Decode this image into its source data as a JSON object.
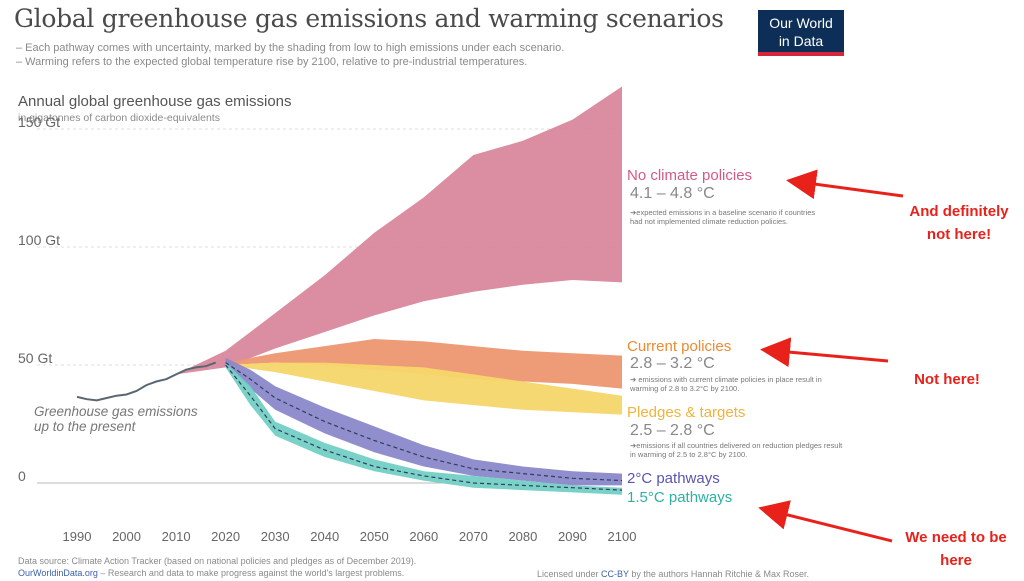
{
  "header": {
    "title": "Global greenhouse gas emissions and warming scenarios",
    "subtitle_1": "– Each pathway comes with uncertainty, marked by the shading from low to high emissions under each scenario.",
    "subtitle_2": "– Warming refers to the expected global temperature rise by 2100, relative to pre-industrial temperatures.",
    "logo_line1": "Our World",
    "logo_line2": "in Data"
  },
  "chart_data": {
    "type": "area",
    "title": "Annual global greenhouse gas emissions",
    "ylabel": "Annual global greenhouse gas emissions",
    "yunit_label": "in gigatonnes of carbon dioxide-equivalents",
    "xlim": [
      1990,
      2100
    ],
    "ylim": [
      -5,
      160
    ],
    "x_ticks": [
      "1990",
      "2000",
      "2010",
      "2020",
      "2030",
      "2040",
      "2050",
      "2060",
      "2070",
      "2080",
      "2090",
      "2100"
    ],
    "y_ticks": [
      {
        "value": 150,
        "label": "150 Gt"
      },
      {
        "value": 100,
        "label": "100 Gt"
      },
      {
        "value": 50,
        "label": "50 Gt"
      },
      {
        "value": 0,
        "label": "0"
      }
    ],
    "history": {
      "label": "Greenhouse gas emissions up to the present",
      "label_line1": "Greenhouse gas emissions",
      "label_line2": "up to the present",
      "color": "#5a6770",
      "x": [
        1990,
        1992,
        1994,
        1996,
        1998,
        2000,
        2002,
        2004,
        2006,
        2008,
        2010,
        2012,
        2014,
        2016,
        2018
      ],
      "y": [
        36.5,
        35.5,
        35,
        36,
        37,
        37.5,
        39,
        41.5,
        43,
        44,
        46,
        48,
        49,
        49.5,
        51
      ]
    },
    "series": [
      {
        "name": "No climate policies",
        "temp": "4.1 – 4.8 °C",
        "note": "➔expected emissions in a baseline scenario if countries had not implemented climate reduction policies.",
        "color": "#d9879d",
        "label_color": "#d45a86",
        "x": [
          2010,
          2020,
          2030,
          2040,
          2050,
          2060,
          2070,
          2080,
          2090,
          2100
        ],
        "low": [
          46,
          49,
          57,
          64,
          71,
          77,
          81,
          84,
          86,
          85
        ],
        "high": [
          46,
          56,
          72,
          88,
          106,
          121,
          139,
          145,
          154,
          168
        ]
      },
      {
        "name": "Current policies",
        "temp": "2.8 – 3.2 °C",
        "note": "➔ emissions with current climate policies in place result in warming of 2.8 to 3.2°C by 2100.",
        "color": "#ed9670",
        "label_color": "#ee8a2f",
        "x": [
          2020,
          2030,
          2040,
          2050,
          2060,
          2070,
          2080,
          2090,
          2100
        ],
        "low": [
          50,
          51,
          50,
          48,
          46,
          44,
          43,
          42,
          40
        ],
        "high": [
          51,
          55,
          58,
          61,
          60,
          58,
          56,
          55,
          54
        ]
      },
      {
        "name": "Pledges & targets",
        "temp": "2.5 – 2.8 °C",
        "note": "➔emissions if all countries delivered on reduction pledges result in warming of 2.5 to 2.8°C by 2100.",
        "color": "#f6d66a",
        "label_color": "#f1b43a",
        "x": [
          2020,
          2030,
          2040,
          2050,
          2060,
          2070,
          2080,
          2090,
          2100
        ],
        "low": [
          50,
          47,
          43,
          39,
          35,
          33,
          31,
          30,
          29
        ],
        "high": [
          50,
          51,
          51,
          50,
          49,
          46,
          43,
          40,
          37
        ]
      },
      {
        "name": "2°C pathways",
        "color": "#8a88c9",
        "label_color": "#5b55b0",
        "x": [
          2020,
          2025,
          2030,
          2040,
          2050,
          2060,
          2070,
          2080,
          2090,
          2100
        ],
        "low": [
          50,
          40,
          31,
          21,
          13,
          7,
          3,
          1,
          -1,
          -1
        ],
        "high": [
          53,
          48,
          41,
          32,
          24,
          16,
          10,
          7,
          5,
          4
        ],
        "median": [
          51,
          44,
          36,
          26,
          18,
          11,
          6,
          4,
          2,
          1
        ]
      },
      {
        "name": "1.5°C pathways",
        "color": "#73cfc4",
        "label_color": "#2eb0a4",
        "x": [
          2020,
          2025,
          2030,
          2040,
          2050,
          2060,
          2070,
          2080,
          2090,
          2100
        ],
        "low": [
          49,
          33,
          20,
          11,
          5,
          1,
          -2,
          -3,
          -4,
          -5
        ],
        "high": [
          51,
          41,
          26,
          17,
          10,
          5,
          3,
          1,
          -1,
          -2
        ],
        "median": [
          50,
          37,
          23,
          14,
          7,
          3,
          0,
          -1,
          -2,
          -3
        ]
      }
    ]
  },
  "callouts": {
    "top": "And definitely not here!",
    "middle": "Not here!",
    "bottom": "We need to be here"
  },
  "footer": {
    "source": "Data source: Climate Action Tracker (based on national policies and pledges as of December 2019).",
    "site": "OurWorldinData.org",
    "tagline": " – Research and data to make progress against the world's largest problems.",
    "license_pre": "Licensed under ",
    "license_link": "CC-BY",
    "license_post": " by the authors Hannah Ritchie & Max Roser."
  }
}
